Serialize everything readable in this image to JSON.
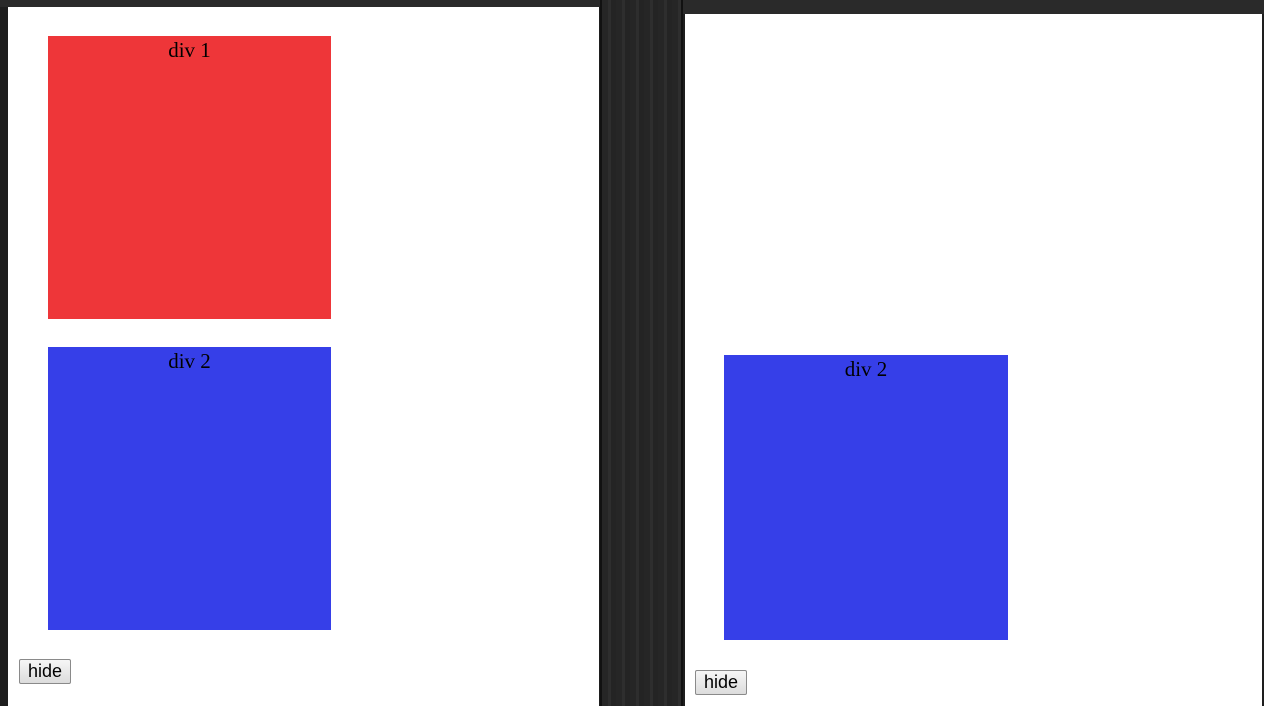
{
  "colors": {
    "div1": "#ee3639",
    "div2": "#363fe8"
  },
  "left_pane": {
    "div1_label": "div 1",
    "div2_label": "div 2",
    "hide_button": "hide"
  },
  "right_pane": {
    "div2_label": "div 2",
    "hide_button": "hide"
  }
}
